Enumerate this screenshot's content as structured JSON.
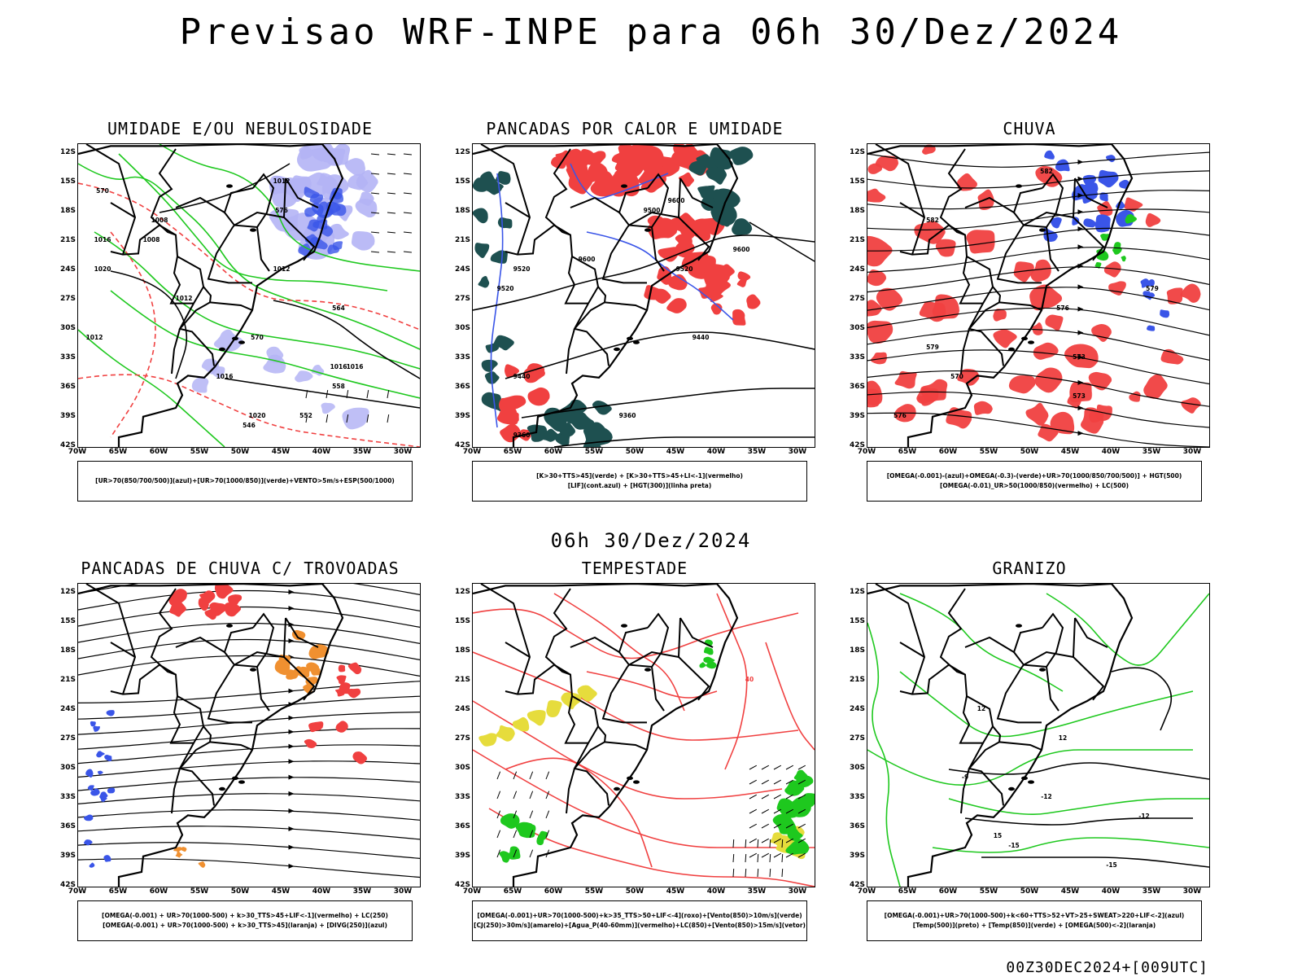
{
  "title": "Previsao WRF-INPE  para 06h 30/Dez/2024",
  "mid_label": "06h 30/Dez/2024",
  "footer": "00Z30DEC2024+[009UTC]",
  "axes": {
    "lat_labels": [
      "12S",
      "15S",
      "18S",
      "21S",
      "24S",
      "27S",
      "30S",
      "33S",
      "36S",
      "39S",
      "42S"
    ],
    "lon_labels": [
      "70W",
      "65W",
      "60W",
      "55W",
      "50W",
      "45W",
      "40W",
      "35W",
      "30W"
    ]
  },
  "colors": {
    "blue": "#3a55e8",
    "light_blue": "#b4b4f5",
    "green": "#1ec81e",
    "red": "#f04040",
    "dark_teal": "#1e5050",
    "orange": "#f09030",
    "yellow": "#e6dc3c",
    "black": "#000000"
  },
  "chart_data": [
    {
      "type": "map",
      "title": "UMIDADE E/OU NEBULOSIDADE",
      "legend_lines": [
        "[UR>70(850/700/500)](azul)+[UR>70(1000/850)](verde)+VENTO>5m/s+ESP(500/1000)"
      ],
      "contour_labels": [
        "1012",
        "1008",
        "1016",
        "1020",
        "1008",
        "1012",
        "1012",
        "1012",
        "1016",
        "1016",
        "1020",
        "1016",
        "570",
        "576",
        "564",
        "570",
        "558",
        "552",
        "546"
      ]
    },
    {
      "type": "map",
      "title": "PANCADAS POR CALOR E UMIDADE",
      "legend_lines": [
        "[K>30+TTS>45](verde) + [K>30+TTS>45+LI<-1](vermelho)",
        "[LIF](cont.azul) + [HGT(300)](linha preta)"
      ],
      "contour_labels": [
        "9600",
        "9500",
        "9600",
        "9520",
        "9600",
        "9520",
        "9520",
        "9440",
        "9440",
        "9360",
        "9360"
      ]
    },
    {
      "type": "map",
      "title": "CHUVA",
      "legend_lines": [
        "[OMEGA(-0.001)-(azul)+OMEGA(-0.3)-(verde)+UR>70(1000/850/700/500)] + HGT(500)",
        "[OMEGA(-0.01)_UR>50(1000/850)(vermelho) + LC(500)"
      ],
      "contour_labels": [
        "582",
        "582",
        "579",
        "576",
        "573",
        "570",
        "573",
        "576",
        "579"
      ]
    },
    {
      "type": "map",
      "title": "PANCADAS DE CHUVA C/ TROVOADAS",
      "legend_lines": [
        "[OMEGA(-0.001) + UR>70(1000-500) + k>30_TTS>45+LIF<-1](vermelho) + LC(250)",
        "[OMEGA(-0.001) + UR>70(1000-500) + k>30_TTS>45](laranja) + [DIVG(250)](azul)"
      ],
      "contour_labels": []
    },
    {
      "type": "map",
      "title": "TEMPESTADE",
      "legend_lines": [
        "[OMEGA(-0.001)+UR>70(1000-500)+k>35_TTS>50+LIF<-4](roxo)+[Vento(850)>10m/s](verde)",
        "[CJ(250)>30m/s](amarelo)+[Agua_P(40-60mm)](vermelho)+LC(850)+[Vento(850)>15m/s](vetor)"
      ],
      "contour_labels": [
        "40"
      ]
    },
    {
      "type": "map",
      "title": "GRANIZO",
      "legend_lines": [
        "[OMEGA(-0.001)+UR>70(1000-500)+k<60+TTS>52+VT>25+SWEAT>220+LIF<-2](azul)",
        "[Temp(500)](preto) + [Temp(850)](verde) + [OMEGA(500)<-2](laranja)"
      ],
      "contour_labels": [
        "-12",
        "-12",
        "-15",
        "-15",
        "12",
        "12",
        "15",
        "-9"
      ]
    }
  ]
}
